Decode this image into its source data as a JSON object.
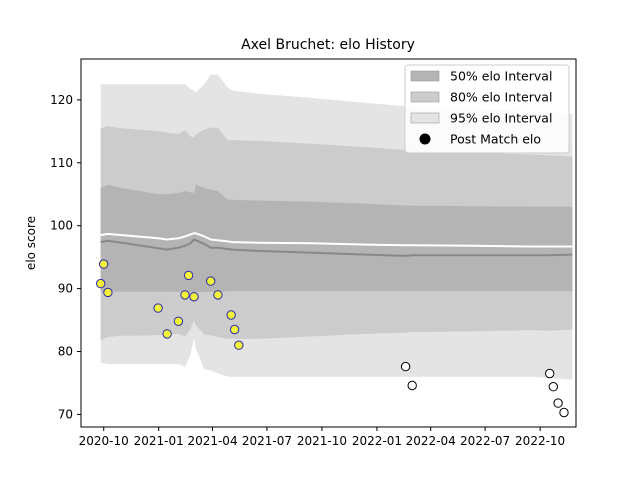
{
  "chart_data": {
    "type": "area",
    "title": "Axel Bruchet: elo History",
    "xlabel": "",
    "ylabel": "elo score",
    "xlim": [
      "2020-08-24",
      "2022-11-30"
    ],
    "ylim": [
      68,
      126.5
    ],
    "x_ticks": [
      {
        "date": "2020-10-01",
        "label": "2020-10"
      },
      {
        "date": "2021-01-01",
        "label": "2021-01"
      },
      {
        "date": "2021-04-01",
        "label": "2021-04"
      },
      {
        "date": "2021-07-01",
        "label": "2021-07"
      },
      {
        "date": "2021-10-01",
        "label": "2021-10"
      },
      {
        "date": "2022-01-01",
        "label": "2022-01"
      },
      {
        "date": "2022-04-01",
        "label": "2022-04"
      },
      {
        "date": "2022-07-01",
        "label": "2022-07"
      },
      {
        "date": "2022-10-01",
        "label": "2022-10"
      }
    ],
    "y_ticks": [
      70,
      80,
      90,
      100,
      110,
      120
    ],
    "legend_position": "top-right",
    "legend": [
      {
        "label": "50% elo Interval",
        "type": "patch",
        "color": "#b4b4b4"
      },
      {
        "label": "80% elo Interval",
        "type": "patch",
        "color": "#cccccc"
      },
      {
        "label": "95% elo Interval",
        "type": "patch",
        "color": "#e4e4e4"
      },
      {
        "label": "Post Match elo",
        "type": "marker",
        "color": "#000000"
      }
    ],
    "colors": {
      "band50": "#b4b4b4",
      "band80": "#cccccc",
      "band95": "#e4e4e4",
      "mean_line": "#ffffff",
      "median_line": "#888888",
      "marker_fill_early": "#f2f23a",
      "marker_edge_early": "#2a2aa8",
      "marker_fill_late": "#ffffff",
      "marker_edge_late": "#000000"
    },
    "series": [
      {
        "x": [
          "2020-09-26",
          "2020-10-08",
          "2020-10-31",
          "2020-12-31",
          "2021-01-15",
          "2021-02-03",
          "2021-02-14",
          "2021-02-23",
          "2021-03-01",
          "2021-03-04",
          "2021-03-18",
          "2021-03-29",
          "2021-04-10",
          "2021-04-26",
          "2021-05-04",
          "2021-06-15",
          "2021-09-15",
          "2021-12-15",
          "2022-02-18",
          "2022-03-01",
          "2022-06-15",
          "2022-09-15",
          "2022-10-17",
          "2022-11-24"
        ],
        "band95_low": [
          78.2,
          78.0,
          78.0,
          78.0,
          78.0,
          78.0,
          77.5,
          79.5,
          82.0,
          80.5,
          77.2,
          77.0,
          76.5,
          76.0,
          76.0,
          76.0,
          76.0,
          76.0,
          76.0,
          76.0,
          76.0,
          76.0,
          75.8,
          75.5
        ],
        "band95_high": [
          122.5,
          122.5,
          122.5,
          122.5,
          122.5,
          122.5,
          122.5,
          121.8,
          121.5,
          121.2,
          122.5,
          124.0,
          124.0,
          122.0,
          121.5,
          121.0,
          120.3,
          119.5,
          119.0,
          118.8,
          118.5,
          118.2,
          118.0,
          117.8
        ],
        "band80_low": [
          81.8,
          82.3,
          82.5,
          82.6,
          82.7,
          82.8,
          82.4,
          83.5,
          85.0,
          84.2,
          82.7,
          82.6,
          82.3,
          82.0,
          82.0,
          82.0,
          82.4,
          82.8,
          83.0,
          83.1,
          83.2,
          83.4,
          83.3,
          83.5
        ],
        "band80_high": [
          115.5,
          115.8,
          115.5,
          115.0,
          114.8,
          114.6,
          115.2,
          114.2,
          114.0,
          114.5,
          115.3,
          115.6,
          115.6,
          113.6,
          113.6,
          113.5,
          113.0,
          112.5,
          112.0,
          111.9,
          111.6,
          111.3,
          111.2,
          111.0
        ],
        "band50_low": [
          89.5,
          89.5,
          89.5,
          89.5,
          89.5,
          89.5,
          89.5,
          89.4,
          89.3,
          89.4,
          89.5,
          89.5,
          89.5,
          89.6,
          89.6,
          89.6,
          89.6,
          89.6,
          89.6,
          89.6,
          89.6,
          89.6,
          89.6,
          89.6
        ],
        "band50_high": [
          106.0,
          106.5,
          106.0,
          105.0,
          105.0,
          105.2,
          105.5,
          105.3,
          105.2,
          106.5,
          106.0,
          105.8,
          105.5,
          104.2,
          104.1,
          104.0,
          103.8,
          103.5,
          103.2,
          103.2,
          103.1,
          103.0,
          103.0,
          103.0
        ],
        "mean": [
          98.5,
          98.7,
          98.5,
          98.0,
          97.8,
          98.0,
          98.3,
          98.6,
          98.8,
          98.8,
          98.3,
          97.8,
          97.7,
          97.5,
          97.4,
          97.3,
          97.2,
          97.0,
          96.9,
          96.9,
          96.8,
          96.7,
          96.7,
          96.7
        ],
        "median": [
          97.4,
          97.6,
          97.3,
          96.4,
          96.2,
          96.5,
          96.8,
          97.2,
          97.8,
          97.7,
          97.1,
          96.5,
          96.5,
          96.3,
          96.2,
          96.0,
          95.7,
          95.4,
          95.2,
          95.3,
          95.3,
          95.3,
          95.3,
          95.4
        ]
      }
    ],
    "post_match_elo": [
      {
        "x": "2020-09-26",
        "y": 90.8
      },
      {
        "x": "2020-10-01",
        "y": 93.9
      },
      {
        "x": "2020-10-08",
        "y": 89.4
      },
      {
        "x": "2020-12-31",
        "y": 86.9
      },
      {
        "x": "2021-01-15",
        "y": 82.8
      },
      {
        "x": "2021-02-03",
        "y": 84.8
      },
      {
        "x": "2021-02-14",
        "y": 89.0
      },
      {
        "x": "2021-02-20",
        "y": 92.1
      },
      {
        "x": "2021-03-01",
        "y": 88.7
      },
      {
        "x": "2021-03-29",
        "y": 91.2
      },
      {
        "x": "2021-04-10",
        "y": 89.0
      },
      {
        "x": "2021-05-02",
        "y": 85.8
      },
      {
        "x": "2021-05-08",
        "y": 83.5
      },
      {
        "x": "2021-05-15",
        "y": 81.0
      },
      {
        "x": "2022-02-18",
        "y": 77.6
      },
      {
        "x": "2022-03-01",
        "y": 74.6
      },
      {
        "x": "2022-10-17",
        "y": 76.5
      },
      {
        "x": "2022-10-23",
        "y": 74.4
      },
      {
        "x": "2022-10-31",
        "y": 71.8
      },
      {
        "x": "2022-11-10",
        "y": 70.3
      }
    ],
    "late_marker_start": "2022-01-01"
  }
}
